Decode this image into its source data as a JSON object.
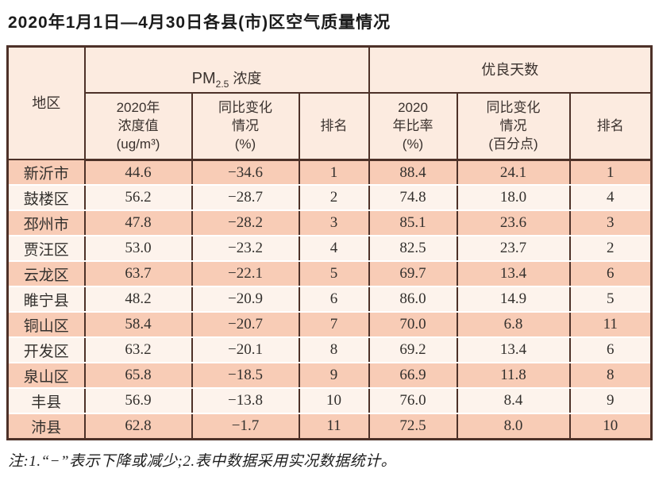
{
  "title": "2020年1月1日—4月30日各县(市)区空气质量情况",
  "note": "注:1.“−”表示下降或减少;2.表中数据采用实况数据统计。",
  "colors": {
    "border": "#4d3128",
    "header_bg": "#fcebe0",
    "row_odd_bg": "#f8ccb6",
    "row_even_bg": "#fdf3ec"
  },
  "table": {
    "region_header": "地区",
    "group_pm": {
      "prefix": "PM",
      "subscript": "2.5",
      "suffix": " 浓度"
    },
    "group_good": "优良天数",
    "sub_headers": {
      "pm_value": "2020年\n浓度值\n(ug/m³)",
      "pm_change": "同比变化\n情况\n(%)",
      "pm_rank": "排名",
      "good_ratio": "2020\n年比率\n(%)",
      "good_change": "同比变化\n情况\n(百分点)",
      "good_rank": "排名"
    },
    "rows": [
      {
        "region": "新沂市",
        "pm_value": "44.6",
        "pm_change": "−34.6",
        "pm_rank": "1",
        "good_ratio": "88.4",
        "good_change": "24.1",
        "good_rank": "1"
      },
      {
        "region": "鼓楼区",
        "pm_value": "56.2",
        "pm_change": "−28.7",
        "pm_rank": "2",
        "good_ratio": "74.8",
        "good_change": "18.0",
        "good_rank": "4"
      },
      {
        "region": "邳州市",
        "pm_value": "47.8",
        "pm_change": "−28.2",
        "pm_rank": "3",
        "good_ratio": "85.1",
        "good_change": "23.6",
        "good_rank": "3"
      },
      {
        "region": "贾汪区",
        "pm_value": "53.0",
        "pm_change": "−23.2",
        "pm_rank": "4",
        "good_ratio": "82.5",
        "good_change": "23.7",
        "good_rank": "2"
      },
      {
        "region": "云龙区",
        "pm_value": "63.7",
        "pm_change": "−22.1",
        "pm_rank": "5",
        "good_ratio": "69.7",
        "good_change": "13.4",
        "good_rank": "6"
      },
      {
        "region": "睢宁县",
        "pm_value": "48.2",
        "pm_change": "−20.9",
        "pm_rank": "6",
        "good_ratio": "86.0",
        "good_change": "14.9",
        "good_rank": "5"
      },
      {
        "region": "铜山区",
        "pm_value": "58.4",
        "pm_change": "−20.7",
        "pm_rank": "7",
        "good_ratio": "70.0",
        "good_change": "6.8",
        "good_rank": "11"
      },
      {
        "region": "开发区",
        "pm_value": "63.2",
        "pm_change": "−20.1",
        "pm_rank": "8",
        "good_ratio": "69.2",
        "good_change": "13.4",
        "good_rank": "6"
      },
      {
        "region": "泉山区",
        "pm_value": "65.8",
        "pm_change": "−18.5",
        "pm_rank": "9",
        "good_ratio": "66.9",
        "good_change": "11.8",
        "good_rank": "8"
      },
      {
        "region": "丰县",
        "pm_value": "56.9",
        "pm_change": "−13.8",
        "pm_rank": "10",
        "good_ratio": "76.0",
        "good_change": "8.4",
        "good_rank": "9"
      },
      {
        "region": "沛县",
        "pm_value": "62.8",
        "pm_change": "−1.7",
        "pm_rank": "11",
        "good_ratio": "72.5",
        "good_change": "8.0",
        "good_rank": "10"
      }
    ]
  }
}
